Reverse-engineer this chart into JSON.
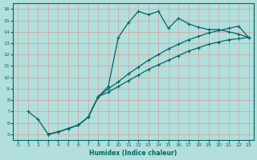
{
  "background_color": "#b2dfdb",
  "grid_color": "#b0c8c8",
  "line_color": "#006666",
  "xlabel": "Humidex (Indice chaleur)",
  "xlim": [
    -0.5,
    23.5
  ],
  "ylim": [
    4.5,
    16.5
  ],
  "xticks": [
    0,
    1,
    2,
    3,
    4,
    5,
    6,
    7,
    8,
    9,
    10,
    11,
    12,
    13,
    14,
    15,
    16,
    17,
    18,
    19,
    20,
    21,
    22,
    23
  ],
  "yticks": [
    5,
    6,
    7,
    8,
    9,
    10,
    11,
    12,
    13,
    14,
    15,
    16
  ],
  "line1_x": [
    3,
    4,
    5,
    6,
    7,
    8,
    9,
    10,
    11,
    12,
    13,
    14,
    15,
    16,
    17,
    18,
    19,
    20,
    21,
    22,
    23
  ],
  "line1_y": [
    5.0,
    5.2,
    5.5,
    5.8,
    6.5,
    8.3,
    9.2,
    13.5,
    14.8,
    15.8,
    15.5,
    15.8,
    14.3,
    15.2,
    14.7,
    14.4,
    14.2,
    14.2,
    14.0,
    13.8,
    13.5
  ],
  "line2_x": [
    3,
    4,
    5,
    6,
    7,
    8,
    9,
    10,
    11,
    12,
    13,
    14,
    15,
    16,
    17,
    18,
    19,
    20,
    21,
    22,
    23
  ],
  "line2_y": [
    5.0,
    5.2,
    5.5,
    5.8,
    6.5,
    8.3,
    8.7,
    9.2,
    9.7,
    10.2,
    10.7,
    11.1,
    11.5,
    11.9,
    12.3,
    12.6,
    12.9,
    13.1,
    13.3,
    13.4,
    13.5
  ],
  "line3_x": [
    1,
    2,
    3,
    4,
    5,
    6,
    7,
    8,
    9,
    10,
    11,
    12,
    13,
    14,
    15,
    16,
    17,
    18,
    19,
    20,
    21,
    22,
    23
  ],
  "line3_y": [
    7.0,
    6.3,
    5.0,
    5.2,
    5.5,
    5.8,
    6.5,
    8.3,
    9.0,
    9.6,
    10.3,
    10.9,
    11.5,
    12.0,
    12.5,
    12.9,
    13.3,
    13.6,
    13.9,
    14.1,
    14.3,
    14.5,
    13.5
  ]
}
